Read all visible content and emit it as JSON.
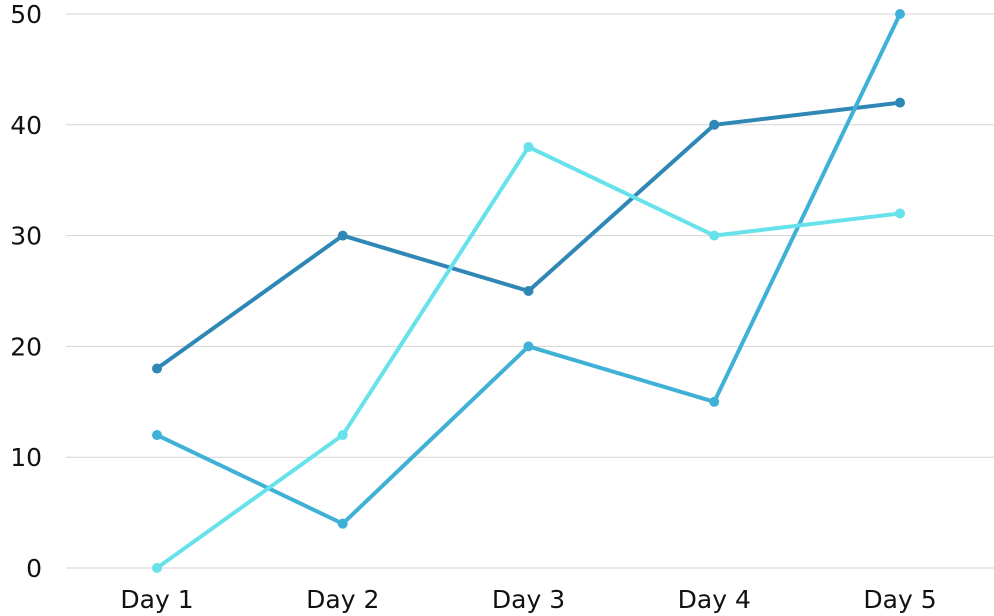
{
  "chart_data": {
    "type": "line",
    "categories": [
      "Day 1",
      "Day 2",
      "Day 3",
      "Day 4",
      "Day 5"
    ],
    "series": [
      {
        "values": [
          18,
          30,
          25,
          40,
          42
        ],
        "color": "#2f87b6"
      },
      {
        "values": [
          12,
          4,
          20,
          15,
          50
        ],
        "color": "#3fb0d6"
      },
      {
        "values": [
          0,
          12,
          38,
          30,
          32
        ],
        "color": "#68e2ea"
      }
    ],
    "ylim": [
      0,
      50
    ],
    "yticks": [
      0,
      10,
      20,
      30,
      40,
      50
    ],
    "grid": true,
    "legend": "none"
  }
}
